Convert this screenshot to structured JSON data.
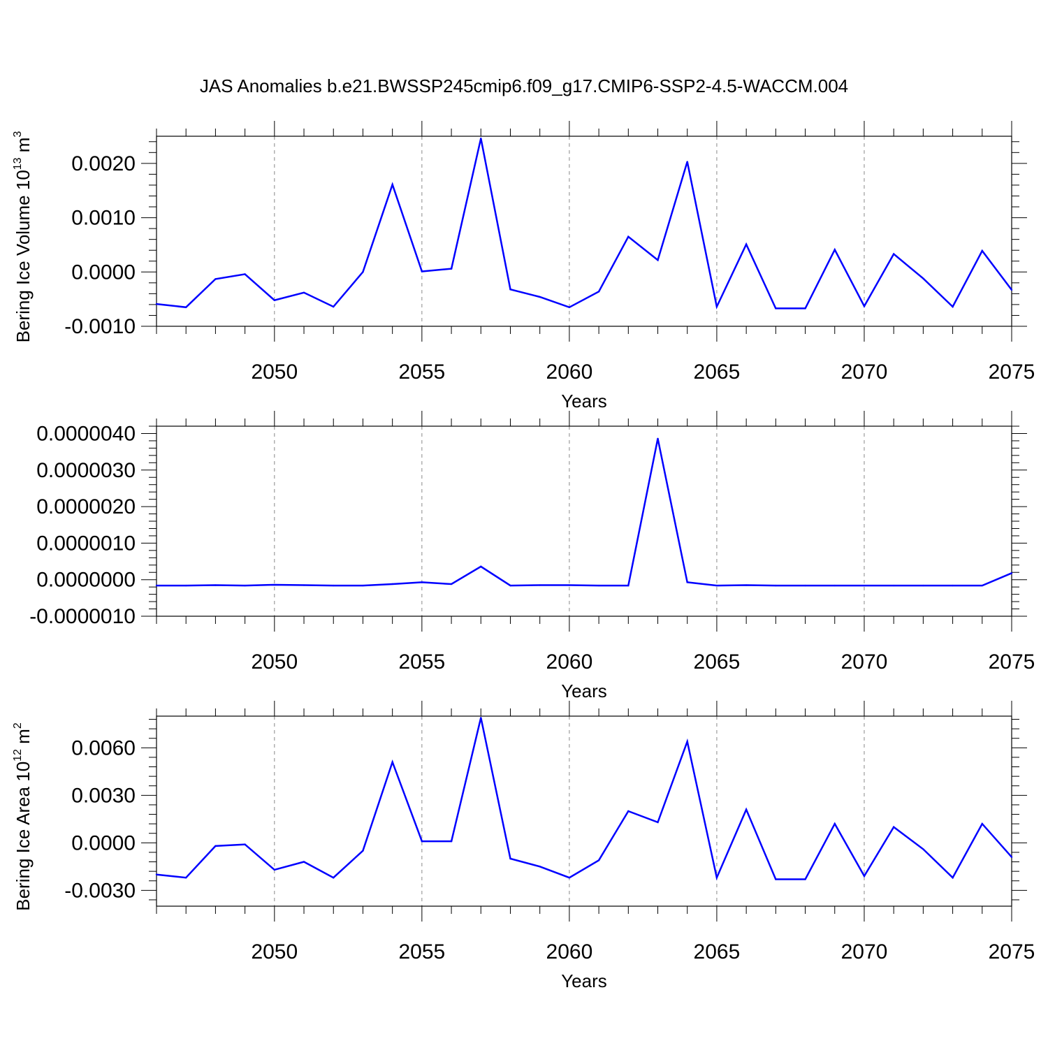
{
  "title": "JAS Anomalies b.e21.BWSSP245cmip6.f09_g17.CMIP6-SSP2-4.5-WACCM.004",
  "colors": {
    "line": "#0000ff",
    "axis": "#000000",
    "grid": "#888888"
  },
  "chart_data": [
    {
      "type": "line",
      "title": "JAS Anomalies b.e21.BWSSP245cmip6.f09_g17.CMIP6-SSP2-4.5-WACCM.004",
      "xlabel": "Years",
      "ylabel": "Bering Ice Volume 10",
      "ylabel_sup": "13",
      "ylabel_unit": "m",
      "ylabel_unit_sup": "3",
      "xlim": [
        2046,
        2075
      ],
      "ylim": [
        -0.001,
        0.0025
      ],
      "x_ticks": [
        2050,
        2055,
        2060,
        2065,
        2070,
        2075
      ],
      "x_tick_labels": [
        "2050",
        "2055",
        "2060",
        "2065",
        "2070",
        "2075"
      ],
      "y_ticks": [
        -0.001,
        0.0,
        0.001,
        0.002
      ],
      "y_tick_labels": [
        "-0.0010",
        "0.0000",
        "0.0010",
        "0.0020"
      ],
      "grid": "vertical dashed at major x ticks",
      "x": [
        2046,
        2047,
        2048,
        2049,
        2050,
        2051,
        2052,
        2053,
        2054,
        2055,
        2056,
        2057,
        2058,
        2059,
        2060,
        2061,
        2062,
        2063,
        2064,
        2065,
        2066,
        2067,
        2068,
        2069,
        2070,
        2071,
        2072,
        2073,
        2074,
        2075
      ],
      "values": [
        -0.00059,
        -0.00065,
        -0.00013,
        -4e-05,
        -0.00052,
        -0.00038,
        -0.00064,
        0.0,
        0.00161,
        1e-05,
        6e-05,
        0.00246,
        -0.00032,
        -0.00046,
        -0.00065,
        -0.00036,
        0.00065,
        0.00022,
        0.00203,
        -0.00064,
        0.00051,
        -0.00067,
        -0.00067,
        0.00041,
        -0.00063,
        0.00033,
        -0.00012,
        -0.00064,
        0.00039,
        -0.00033
      ]
    },
    {
      "type": "line",
      "xlabel": "Years",
      "ylabel": "",
      "xlim": [
        2046,
        2075
      ],
      "ylim": [
        -1e-06,
        4.2e-06
      ],
      "x_ticks": [
        2050,
        2055,
        2060,
        2065,
        2070,
        2075
      ],
      "x_tick_labels": [
        "2050",
        "2055",
        "2060",
        "2065",
        "2070",
        "2075"
      ],
      "y_ticks": [
        -1e-06,
        0.0,
        1e-06,
        2e-06,
        3e-06,
        4e-06
      ],
      "y_tick_labels": [
        "-0.0000010",
        "0.0000000",
        "0.0000010",
        "0.0000020",
        "0.0000030",
        "0.0000040"
      ],
      "grid": "vertical dashed at major x ticks",
      "x": [
        2046,
        2047,
        2048,
        2049,
        2050,
        2051,
        2052,
        2053,
        2054,
        2055,
        2056,
        2057,
        2058,
        2059,
        2060,
        2061,
        2062,
        2063,
        2064,
        2065,
        2066,
        2067,
        2068,
        2069,
        2070,
        2071,
        2072,
        2073,
        2074,
        2075
      ],
      "values": [
        -1.6e-07,
        -1.6e-07,
        -1.5e-07,
        -1.6e-07,
        -1.4e-07,
        -1.5e-07,
        -1.6e-07,
        -1.6e-07,
        -1.2e-07,
        -7e-08,
        -1.2e-07,
        3.6e-07,
        -1.6e-07,
        -1.5e-07,
        -1.5e-07,
        -1.6e-07,
        -1.6e-07,
        3.86e-06,
        -7e-08,
        -1.6e-07,
        -1.5e-07,
        -1.6e-07,
        -1.6e-07,
        -1.6e-07,
        -1.6e-07,
        -1.6e-07,
        -1.6e-07,
        -1.6e-07,
        -1.6e-07,
        1.8e-07
      ]
    },
    {
      "type": "line",
      "xlabel": "Years",
      "ylabel": "Bering Ice Area 10",
      "ylabel_sup": "12",
      "ylabel_unit": "m",
      "ylabel_unit_sup": "2",
      "xlim": [
        2046,
        2075
      ],
      "ylim": [
        -0.004,
        0.008
      ],
      "x_ticks": [
        2050,
        2055,
        2060,
        2065,
        2070,
        2075
      ],
      "x_tick_labels": [
        "2050",
        "2055",
        "2060",
        "2065",
        "2070",
        "2075"
      ],
      "y_ticks": [
        -0.003,
        0.0,
        0.003,
        0.006
      ],
      "y_tick_labels": [
        "-0.0030",
        "0.0000",
        "0.0030",
        "0.0060"
      ],
      "grid": "vertical dashed at major x ticks",
      "x": [
        2046,
        2047,
        2048,
        2049,
        2050,
        2051,
        2052,
        2053,
        2054,
        2055,
        2056,
        2057,
        2058,
        2059,
        2060,
        2061,
        2062,
        2063,
        2064,
        2065,
        2066,
        2067,
        2068,
        2069,
        2070,
        2071,
        2072,
        2073,
        2074,
        2075
      ],
      "values": [
        -0.002,
        -0.0022,
        -0.0002,
        -0.0001,
        -0.0017,
        -0.0012,
        -0.0022,
        -0.0005,
        0.0051,
        0.0001,
        0.0001,
        0.0079,
        -0.001,
        -0.0015,
        -0.0022,
        -0.0011,
        0.002,
        0.0013,
        0.0064,
        -0.0022,
        0.0021,
        -0.0023,
        -0.0023,
        0.0012,
        -0.0021,
        0.001,
        -0.0004,
        -0.0022,
        0.0012,
        -0.0009
      ]
    }
  ]
}
